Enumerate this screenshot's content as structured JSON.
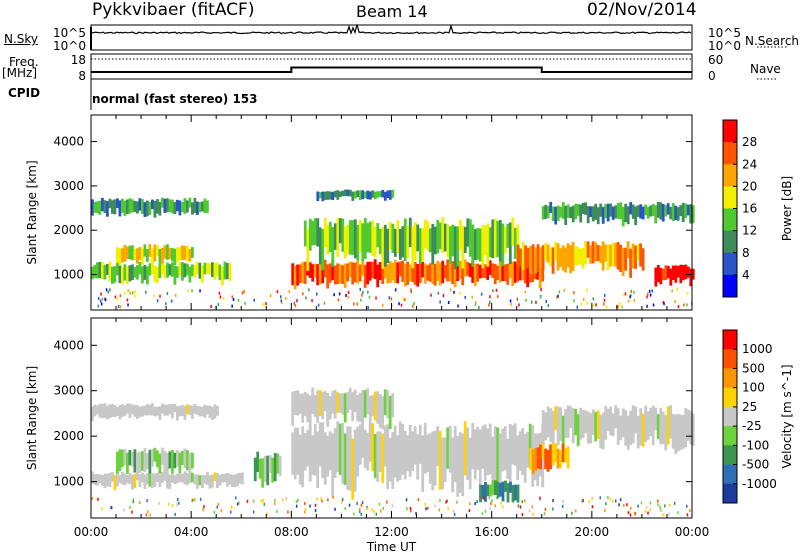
{
  "header": {
    "station": "Pykkvibaer (fitACF)",
    "beam": "Beam 14",
    "date": "02/Nov/2014"
  },
  "side_labels": {
    "nsky": "N.Sky",
    "nsearch": "N.Search",
    "freq": "Freq.",
    "freq_unit": "[MHz]",
    "nave": "Nave",
    "cpid": "CPID",
    "cpid_value": "normal (fast stereo) 153"
  },
  "colors": {
    "power_scale": [
      "#0000ff",
      "#2a55c8",
      "#3d8c5a",
      "#50c832",
      "#f0f000",
      "#ffa500",
      "#ff5500",
      "#ff0000"
    ],
    "velocity_scale": [
      "#1e3ca0",
      "#2e6eb4",
      "#3c9650",
      "#6ed23c",
      "#c8c8c8",
      "#ffd200",
      "#ff9600",
      "#ff5000",
      "#ff0000"
    ],
    "ground_scatter": "#bebebe"
  },
  "chart_data": [
    {
      "type": "line",
      "name": "noise-panel",
      "left_ticks": [
        "10^5",
        "10^0"
      ],
      "right_ticks": [
        "10^5",
        "10^0"
      ],
      "left_label": "N.Sky",
      "right_label": "N.Search"
    },
    {
      "type": "line",
      "name": "frequency-panel",
      "left_ticks": [
        "18",
        "8"
      ],
      "right_ticks": [
        "60",
        "0"
      ],
      "freq_mhz": [
        [
          0,
          10.8
        ],
        [
          2.5,
          10.8
        ],
        [
          8,
          12.6
        ],
        [
          18,
          12.6
        ],
        [
          18.05,
          10.8
        ],
        [
          24,
          10.8
        ]
      ],
      "nave": [
        [
          0,
          30
        ],
        [
          2.6,
          26
        ],
        [
          3.2,
          30
        ],
        [
          8,
          48
        ],
        [
          18,
          48
        ],
        [
          18.05,
          30
        ],
        [
          24,
          30
        ]
      ],
      "left_label": "Freq. [MHz]",
      "right_label": "Nave"
    },
    {
      "type": "heatmap",
      "name": "power",
      "ylabel": "Slant Range [km]",
      "ylim": [
        200,
        4600
      ],
      "yticks": [
        "1000",
        "2000",
        "3000",
        "4000"
      ],
      "colorbar_label": "Power [dB]",
      "colorbar_ticks": [
        "28",
        "24",
        "20",
        "16",
        "12",
        "8",
        "4"
      ],
      "bands": [
        {
          "t0": 0,
          "t1": 4.6,
          "r0": 2350,
          "r1": 2700,
          "level": 2
        },
        {
          "t0": 1.0,
          "t1": 4.0,
          "r0": 1250,
          "r1": 1650,
          "level": 4
        },
        {
          "t0": 0,
          "t1": 5.5,
          "r0": 850,
          "r1": 1250,
          "level": 3
        },
        {
          "t0": 8,
          "t1": 18,
          "r0": 800,
          "r1": 1300,
          "level": 6
        },
        {
          "t0": 8.5,
          "t1": 17,
          "r0": 1300,
          "r1": 2200,
          "level": 3
        },
        {
          "t0": 9,
          "t1": 12,
          "r0": 2700,
          "r1": 2900,
          "level": 2
        },
        {
          "t0": 17,
          "t1": 22,
          "r0": 1100,
          "r1": 1700,
          "level": 5
        },
        {
          "t0": 18,
          "t1": 24,
          "r0": 2200,
          "r1": 2600,
          "level": 2
        },
        {
          "t0": 22.5,
          "t1": 24,
          "r0": 800,
          "r1": 1200,
          "level": 7
        }
      ]
    },
    {
      "type": "heatmap",
      "name": "velocity",
      "xlabel": "Time UT",
      "ylabel": "Slant Range [km]",
      "ylim": [
        200,
        4600
      ],
      "yticks": [
        "1000",
        "2000",
        "3000",
        "4000"
      ],
      "xticks": [
        "00:00",
        "04:00",
        "08:00",
        "12:00",
        "16:00",
        "20:00",
        "00:00"
      ],
      "xlim": [
        0,
        24
      ],
      "colorbar_label": "Velocity [m s^-1]",
      "colorbar_ticks": [
        "1000",
        "500",
        "100",
        "25",
        "-25",
        "-100",
        "-500",
        "-1000"
      ],
      "bands": [
        {
          "t0": 0,
          "t1": 5,
          "r0": 2400,
          "r1": 2700,
          "level": 4
        },
        {
          "t0": 1,
          "t1": 4,
          "r0": 1200,
          "r1": 1700,
          "level": 3
        },
        {
          "t0": 0,
          "t1": 6,
          "r0": 900,
          "r1": 1200,
          "level": 4
        },
        {
          "t0": 6.5,
          "t1": 7.5,
          "r0": 1000,
          "r1": 1600,
          "level": 3
        },
        {
          "t0": 8,
          "t1": 18,
          "r0": 900,
          "r1": 2200,
          "level": 4
        },
        {
          "t0": 8,
          "t1": 12,
          "r0": 2300,
          "r1": 3000,
          "level": 4
        },
        {
          "t0": 15.5,
          "t1": 17,
          "r0": 600,
          "r1": 1000,
          "level": 2
        },
        {
          "t0": 18,
          "t1": 24,
          "r0": 1800,
          "r1": 2600,
          "level": 4
        },
        {
          "t0": 17.5,
          "t1": 19,
          "r0": 1300,
          "r1": 1800,
          "level": 6
        }
      ]
    }
  ]
}
